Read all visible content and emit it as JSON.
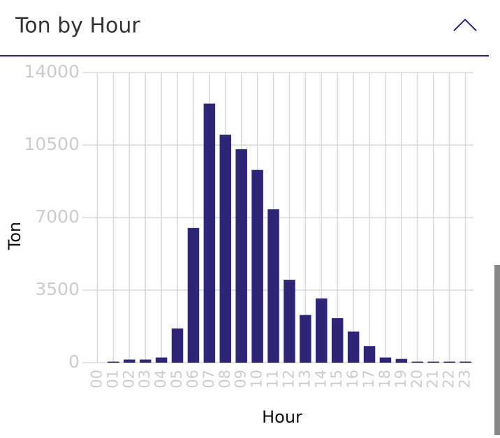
{
  "header": {
    "title": "Ton by Hour"
  },
  "chart_data": {
    "type": "bar",
    "x_label": "Hour",
    "y_label": "Ton",
    "categories": [
      "00",
      "01",
      "02",
      "03",
      "04",
      "05",
      "06",
      "07",
      "08",
      "09",
      "10",
      "11",
      "12",
      "13",
      "14",
      "15",
      "16",
      "17",
      "18",
      "19",
      "20",
      "21",
      "22",
      "23"
    ],
    "values": [
      0,
      50,
      150,
      150,
      250,
      1650,
      6500,
      12500,
      11000,
      10300,
      9300,
      7400,
      4000,
      2300,
      3100,
      2150,
      1500,
      800,
      250,
      180,
      50,
      50,
      50,
      50
    ],
    "color": "#2e2577",
    "ylim": [
      0,
      14000
    ],
    "yticks": [
      0,
      3500,
      7000,
      10500,
      14000
    ],
    "grid": true
  }
}
